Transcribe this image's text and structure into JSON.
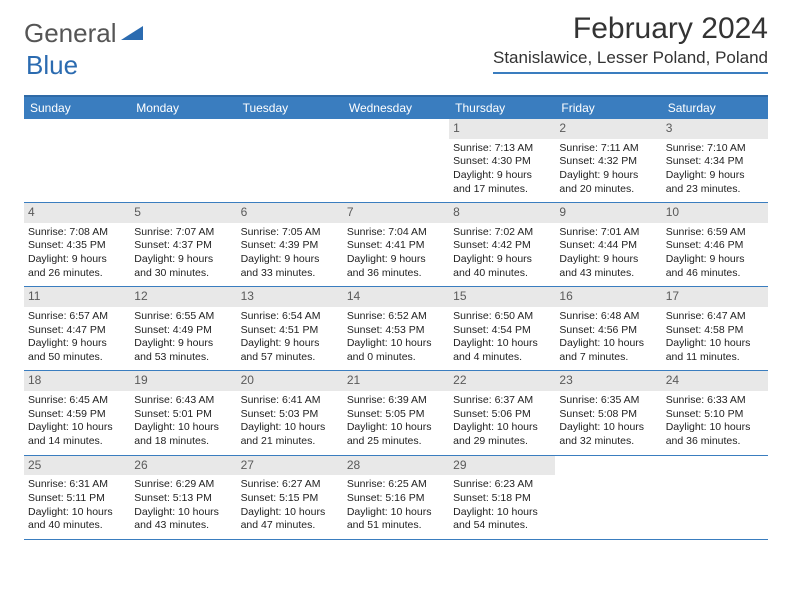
{
  "logo": {
    "text1": "General",
    "text2": "Blue"
  },
  "title": "February 2024",
  "location": "Stanislawice, Lesser Poland, Poland",
  "colors": {
    "header_bg": "#3a7dbf",
    "header_border": "#2f6aa6",
    "daynum_bg": "#e8e8e8",
    "daynum_color": "#5a5a5a",
    "text": "#222222",
    "logo_gray": "#555555",
    "logo_blue": "#2b6bb0"
  },
  "dayHeaders": [
    "Sunday",
    "Monday",
    "Tuesday",
    "Wednesday",
    "Thursday",
    "Friday",
    "Saturday"
  ],
  "weeks": [
    [
      {
        "empty": true
      },
      {
        "empty": true
      },
      {
        "empty": true
      },
      {
        "empty": true
      },
      {
        "day": "1",
        "sunrise": "Sunrise: 7:13 AM",
        "sunset": "Sunset: 4:30 PM",
        "daylight": "Daylight: 9 hours and 17 minutes."
      },
      {
        "day": "2",
        "sunrise": "Sunrise: 7:11 AM",
        "sunset": "Sunset: 4:32 PM",
        "daylight": "Daylight: 9 hours and 20 minutes."
      },
      {
        "day": "3",
        "sunrise": "Sunrise: 7:10 AM",
        "sunset": "Sunset: 4:34 PM",
        "daylight": "Daylight: 9 hours and 23 minutes."
      }
    ],
    [
      {
        "day": "4",
        "sunrise": "Sunrise: 7:08 AM",
        "sunset": "Sunset: 4:35 PM",
        "daylight": "Daylight: 9 hours and 26 minutes."
      },
      {
        "day": "5",
        "sunrise": "Sunrise: 7:07 AM",
        "sunset": "Sunset: 4:37 PM",
        "daylight": "Daylight: 9 hours and 30 minutes."
      },
      {
        "day": "6",
        "sunrise": "Sunrise: 7:05 AM",
        "sunset": "Sunset: 4:39 PM",
        "daylight": "Daylight: 9 hours and 33 minutes."
      },
      {
        "day": "7",
        "sunrise": "Sunrise: 7:04 AM",
        "sunset": "Sunset: 4:41 PM",
        "daylight": "Daylight: 9 hours and 36 minutes."
      },
      {
        "day": "8",
        "sunrise": "Sunrise: 7:02 AM",
        "sunset": "Sunset: 4:42 PM",
        "daylight": "Daylight: 9 hours and 40 minutes."
      },
      {
        "day": "9",
        "sunrise": "Sunrise: 7:01 AM",
        "sunset": "Sunset: 4:44 PM",
        "daylight": "Daylight: 9 hours and 43 minutes."
      },
      {
        "day": "10",
        "sunrise": "Sunrise: 6:59 AM",
        "sunset": "Sunset: 4:46 PM",
        "daylight": "Daylight: 9 hours and 46 minutes."
      }
    ],
    [
      {
        "day": "11",
        "sunrise": "Sunrise: 6:57 AM",
        "sunset": "Sunset: 4:47 PM",
        "daylight": "Daylight: 9 hours and 50 minutes."
      },
      {
        "day": "12",
        "sunrise": "Sunrise: 6:55 AM",
        "sunset": "Sunset: 4:49 PM",
        "daylight": "Daylight: 9 hours and 53 minutes."
      },
      {
        "day": "13",
        "sunrise": "Sunrise: 6:54 AM",
        "sunset": "Sunset: 4:51 PM",
        "daylight": "Daylight: 9 hours and 57 minutes."
      },
      {
        "day": "14",
        "sunrise": "Sunrise: 6:52 AM",
        "sunset": "Sunset: 4:53 PM",
        "daylight": "Daylight: 10 hours and 0 minutes."
      },
      {
        "day": "15",
        "sunrise": "Sunrise: 6:50 AM",
        "sunset": "Sunset: 4:54 PM",
        "daylight": "Daylight: 10 hours and 4 minutes."
      },
      {
        "day": "16",
        "sunrise": "Sunrise: 6:48 AM",
        "sunset": "Sunset: 4:56 PM",
        "daylight": "Daylight: 10 hours and 7 minutes."
      },
      {
        "day": "17",
        "sunrise": "Sunrise: 6:47 AM",
        "sunset": "Sunset: 4:58 PM",
        "daylight": "Daylight: 10 hours and 11 minutes."
      }
    ],
    [
      {
        "day": "18",
        "sunrise": "Sunrise: 6:45 AM",
        "sunset": "Sunset: 4:59 PM",
        "daylight": "Daylight: 10 hours and 14 minutes."
      },
      {
        "day": "19",
        "sunrise": "Sunrise: 6:43 AM",
        "sunset": "Sunset: 5:01 PM",
        "daylight": "Daylight: 10 hours and 18 minutes."
      },
      {
        "day": "20",
        "sunrise": "Sunrise: 6:41 AM",
        "sunset": "Sunset: 5:03 PM",
        "daylight": "Daylight: 10 hours and 21 minutes."
      },
      {
        "day": "21",
        "sunrise": "Sunrise: 6:39 AM",
        "sunset": "Sunset: 5:05 PM",
        "daylight": "Daylight: 10 hours and 25 minutes."
      },
      {
        "day": "22",
        "sunrise": "Sunrise: 6:37 AM",
        "sunset": "Sunset: 5:06 PM",
        "daylight": "Daylight: 10 hours and 29 minutes."
      },
      {
        "day": "23",
        "sunrise": "Sunrise: 6:35 AM",
        "sunset": "Sunset: 5:08 PM",
        "daylight": "Daylight: 10 hours and 32 minutes."
      },
      {
        "day": "24",
        "sunrise": "Sunrise: 6:33 AM",
        "sunset": "Sunset: 5:10 PM",
        "daylight": "Daylight: 10 hours and 36 minutes."
      }
    ],
    [
      {
        "day": "25",
        "sunrise": "Sunrise: 6:31 AM",
        "sunset": "Sunset: 5:11 PM",
        "daylight": "Daylight: 10 hours and 40 minutes."
      },
      {
        "day": "26",
        "sunrise": "Sunrise: 6:29 AM",
        "sunset": "Sunset: 5:13 PM",
        "daylight": "Daylight: 10 hours and 43 minutes."
      },
      {
        "day": "27",
        "sunrise": "Sunrise: 6:27 AM",
        "sunset": "Sunset: 5:15 PM",
        "daylight": "Daylight: 10 hours and 47 minutes."
      },
      {
        "day": "28",
        "sunrise": "Sunrise: 6:25 AM",
        "sunset": "Sunset: 5:16 PM",
        "daylight": "Daylight: 10 hours and 51 minutes."
      },
      {
        "day": "29",
        "sunrise": "Sunrise: 6:23 AM",
        "sunset": "Sunset: 5:18 PM",
        "daylight": "Daylight: 10 hours and 54 minutes."
      },
      {
        "empty": true
      },
      {
        "empty": true
      }
    ]
  ]
}
